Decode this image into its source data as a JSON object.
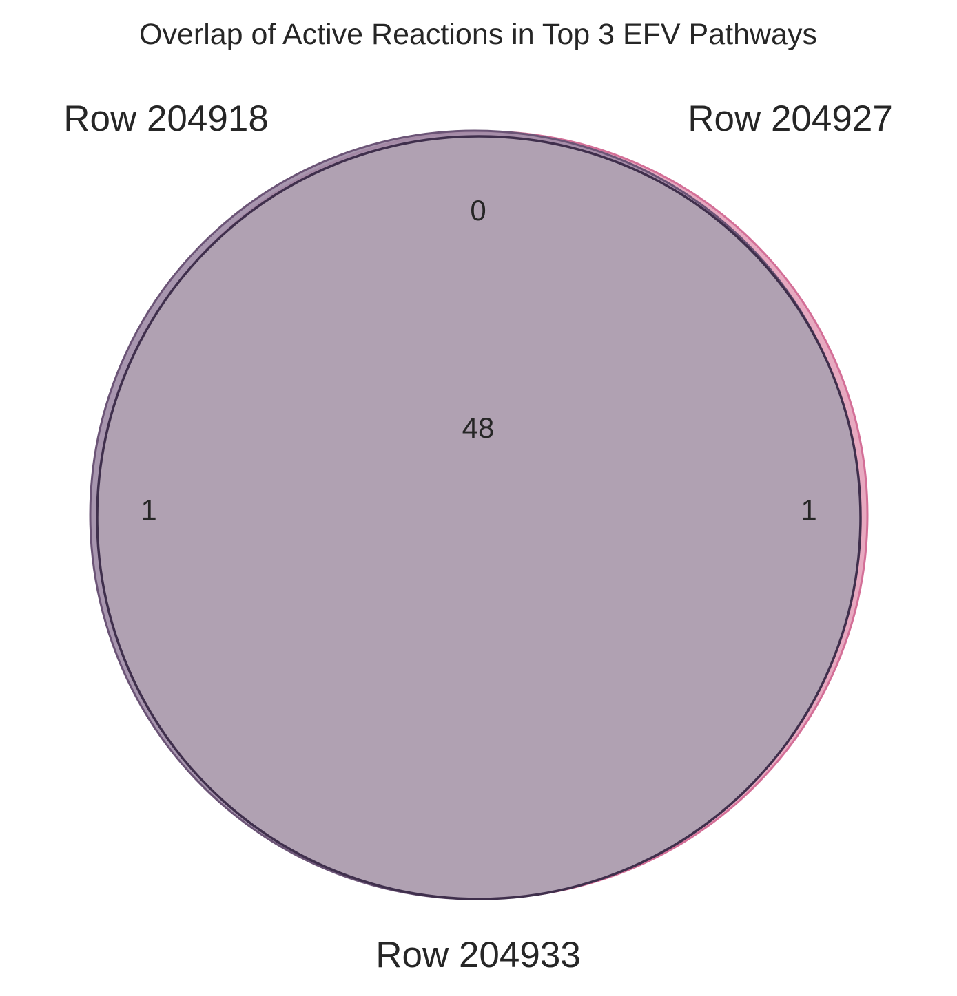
{
  "chart_data": {
    "type": "venn3",
    "title": "Overlap of Active Reactions in Top 3 EFV Pathways",
    "sets": [
      {
        "name": "Row 204918",
        "color": "#7e5a8a"
      },
      {
        "name": "Row 204927",
        "color": "#d9648f"
      },
      {
        "name": "Row 204933",
        "color": "#3d2f4f"
      }
    ],
    "regions": {
      "only_204918": "1",
      "only_204927": "1",
      "204918_204927_not_204933": "0",
      "all_three": "48"
    },
    "fill_color": "#b0a1b2",
    "outline_color": "#3f2f4c"
  }
}
